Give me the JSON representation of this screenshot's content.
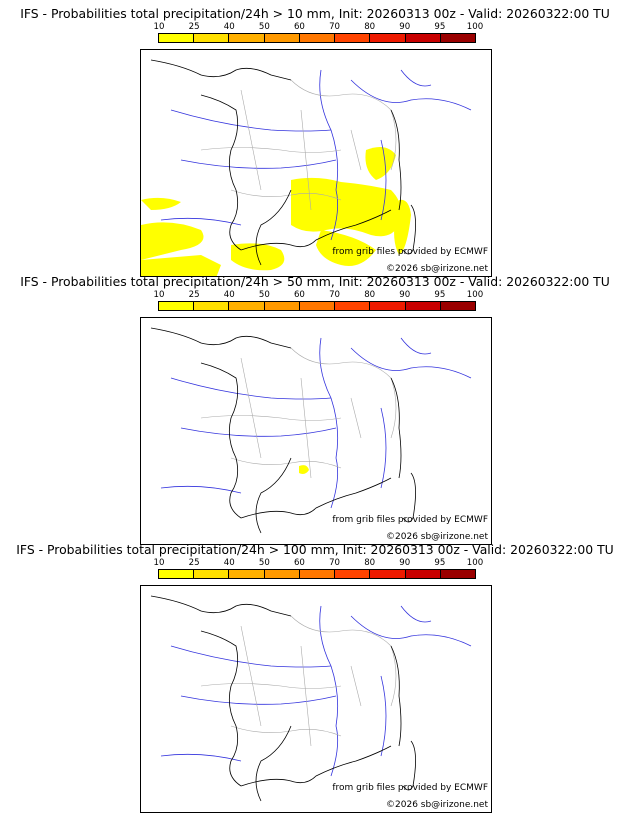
{
  "legend": {
    "ticks": [
      "10",
      "25",
      "40",
      "50",
      "60",
      "70",
      "80",
      "90",
      "95",
      "100"
    ],
    "colors": [
      "#ffff00",
      "#ffe000",
      "#ffb000",
      "#ff9900",
      "#ff7700",
      "#ff4400",
      "#ee1a00",
      "#c80000",
      "#9a0000",
      "#600000"
    ]
  },
  "colors": {
    "coast": "#000000",
    "rivers": "#3333dd",
    "borders": "#aaaaaa",
    "precip": "#ffff00"
  },
  "panels": [
    {
      "title": "IFS - Probabilities total precipitation/24h > 10 mm, Init: 20260313 00z - Valid: 20260322:00 TU",
      "credit_grib": "from grib files provided by ECMWF",
      "credit_copy": "©2026 sb@irizone.net"
    },
    {
      "title": "IFS - Probabilities total precipitation/24h > 50 mm, Init: 20260313 00z - Valid: 20260322:00 TU",
      "credit_grib": "from grib files provided by ECMWF",
      "credit_copy": "©2026 sb@irizone.net"
    },
    {
      "title": "IFS - Probabilities total precipitation/24h > 100 mm, Init: 20260313 00z - Valid: 20260322:00 TU",
      "credit_grib": "from grib files provided by ECMWF",
      "credit_copy": "©2026 sb@irizone.net"
    }
  ]
}
